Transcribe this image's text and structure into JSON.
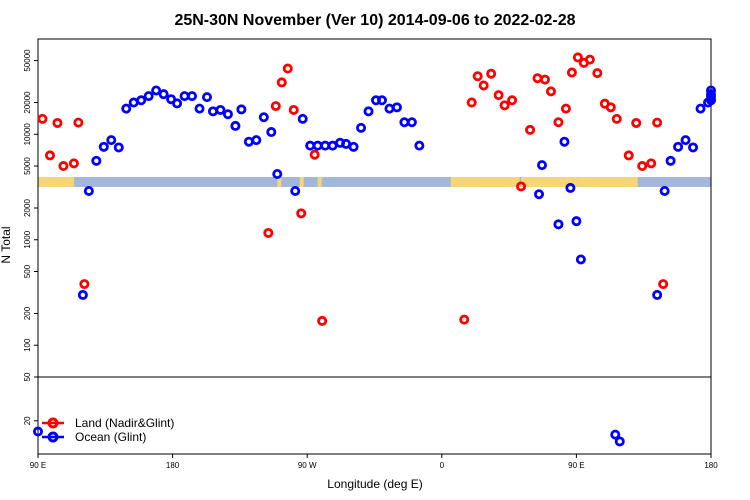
{
  "chart_data": {
    "type": "scatter",
    "title": "25N-30N November (Ver 10)   2014-09-06 to 2022-02-28",
    "xlabel": "Longitude (deg E)",
    "ylabel": "N Total",
    "x_ticks": [
      {
        "value": 90,
        "label": "90 E"
      },
      {
        "value": 180,
        "label": "180"
      },
      {
        "value": 270,
        "label": "90 W"
      },
      {
        "value": 360,
        "label": "0"
      },
      {
        "value": 450,
        "label": "90 E"
      },
      {
        "value": 540,
        "label": "180"
      }
    ],
    "xlim": [
      90,
      540
    ],
    "ylim_lower": [
      10,
      50
    ],
    "ylim_upper": [
      50,
      80000
    ],
    "y_ticks_lower": [
      "20"
    ],
    "y_ticks_upper": [
      "50",
      "100",
      "200",
      "500",
      "1000",
      "2000",
      "5000",
      "10000",
      "20000",
      "50000"
    ],
    "y_tick_values_upper": [
      50,
      100,
      200,
      500,
      1000,
      2000,
      5000,
      10000,
      20000,
      50000
    ],
    "grid": false,
    "legend_position": "bottom-left",
    "colors": {
      "land": "#ff0000",
      "ocean": "#0000ff",
      "sand": "#f5d77a",
      "water": "#a3b8d8"
    },
    "series": [
      {
        "name": "Land (Nadir&Glint)",
        "color": "#ff0000",
        "points": [
          [
            93,
            14000
          ],
          [
            98,
            6300
          ],
          [
            103,
            12800
          ],
          [
            107,
            5000
          ],
          [
            114,
            5300
          ],
          [
            117,
            12900
          ],
          [
            121,
            380
          ],
          [
            244,
            1160
          ],
          [
            249,
            18500
          ],
          [
            253,
            31000
          ],
          [
            257,
            42000
          ],
          [
            261,
            17000
          ],
          [
            266,
            1780
          ],
          [
            275,
            6400
          ],
          [
            280,
            170
          ],
          [
            375,
            175
          ],
          [
            380,
            20000
          ],
          [
            384,
            35500
          ],
          [
            388,
            29000
          ],
          [
            393,
            37500
          ],
          [
            398,
            23500
          ],
          [
            402,
            18800
          ],
          [
            407,
            21000
          ],
          [
            413,
            3200
          ],
          [
            419,
            11000
          ],
          [
            424,
            34000
          ],
          [
            429,
            33000
          ],
          [
            433,
            25500
          ],
          [
            438,
            13000
          ],
          [
            443,
            17500
          ],
          [
            447,
            38500
          ],
          [
            451,
            53500
          ],
          [
            455,
            47500
          ],
          [
            459,
            51000
          ],
          [
            464,
            38000
          ],
          [
            469,
            19500
          ],
          [
            473,
            18000
          ],
          [
            477,
            14000
          ],
          [
            485,
            6300
          ],
          [
            490,
            12800
          ],
          [
            494,
            5000
          ],
          [
            500,
            5300
          ],
          [
            504,
            12900
          ],
          [
            508,
            380
          ]
        ]
      },
      {
        "name": "Ocean (Glint)",
        "color": "#0000ff",
        "points": [
          [
            90,
            16
          ],
          [
            120,
            300
          ],
          [
            124,
            2900
          ],
          [
            129,
            5600
          ],
          [
            134,
            7600
          ],
          [
            139,
            8800
          ],
          [
            144,
            7500
          ],
          [
            149,
            17500
          ],
          [
            154,
            20000
          ],
          [
            159,
            21000
          ],
          [
            164,
            23000
          ],
          [
            169,
            26000
          ],
          [
            174,
            24000
          ],
          [
            179,
            21500
          ],
          [
            183,
            19600
          ],
          [
            188,
            23000
          ],
          [
            193,
            23000
          ],
          [
            198,
            17500
          ],
          [
            203,
            22500
          ],
          [
            207,
            16500
          ],
          [
            212,
            17000
          ],
          [
            217,
            15500
          ],
          [
            222,
            12000
          ],
          [
            226,
            17200
          ],
          [
            231,
            8500
          ],
          [
            236,
            8800
          ],
          [
            241,
            14500
          ],
          [
            246,
            10500
          ],
          [
            250,
            4200
          ],
          [
            262,
            2900
          ],
          [
            267,
            14000
          ],
          [
            272,
            7800
          ],
          [
            277,
            7800
          ],
          [
            282,
            7800
          ],
          [
            287,
            7800
          ],
          [
            292,
            8300
          ],
          [
            296,
            8100
          ],
          [
            301,
            7600
          ],
          [
            306,
            11500
          ],
          [
            311,
            16500
          ],
          [
            316,
            21000
          ],
          [
            320,
            21000
          ],
          [
            325,
            17500
          ],
          [
            330,
            18000
          ],
          [
            335,
            13000
          ],
          [
            340,
            13000
          ],
          [
            345,
            7800
          ],
          [
            425,
            2700
          ],
          [
            427,
            5100
          ],
          [
            438,
            1400
          ],
          [
            442,
            8500
          ],
          [
            446,
            3100
          ],
          [
            450,
            1500
          ],
          [
            453,
            650
          ],
          [
            476,
            15
          ],
          [
            479,
            13
          ],
          [
            504,
            300
          ],
          [
            509,
            2900
          ],
          [
            513,
            5600
          ],
          [
            518,
            7600
          ],
          [
            523,
            8800
          ],
          [
            528,
            7500
          ],
          [
            533,
            17500
          ],
          [
            538,
            20000
          ],
          [
            542,
            21000
          ],
          [
            547,
            23000
          ],
          [
            552,
            26000
          ],
          [
            557,
            24000
          ],
          [
            562,
            21500
          ]
        ]
      }
    ]
  }
}
